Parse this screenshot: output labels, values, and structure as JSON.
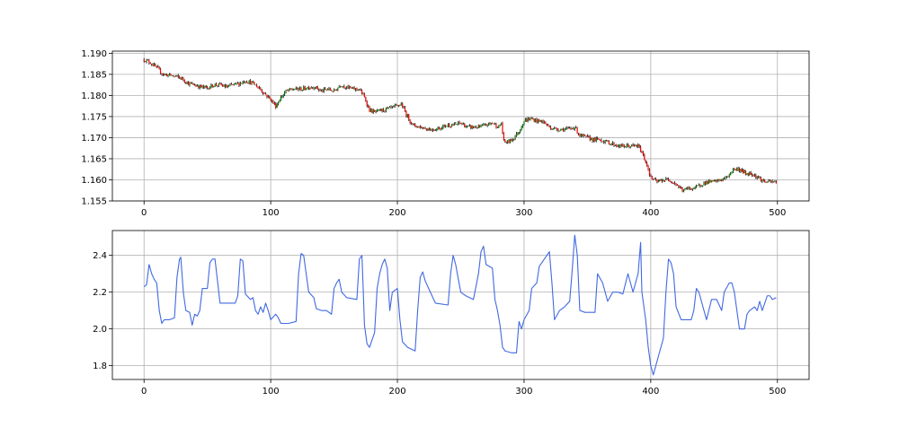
{
  "chart_data": [
    {
      "type": "candlestick",
      "xlim": [
        -25,
        525
      ],
      "ylim": [
        1.155,
        1.1905
      ],
      "x_ticks": [
        0,
        100,
        200,
        300,
        400,
        500
      ],
      "x_tick_labels": [
        "0",
        "100",
        "200",
        "300",
        "400",
        "500"
      ],
      "y_ticks": [
        1.155,
        1.16,
        1.165,
        1.17,
        1.175,
        1.18,
        1.185,
        1.19
      ],
      "y_tick_labels": [
        "1.155",
        "1.160",
        "1.165",
        "1.170",
        "1.175",
        "1.180",
        "1.185",
        "1.190"
      ],
      "grid": true,
      "up_color": "#008000",
      "down_color": "#ff0000",
      "wick_color": "#000000",
      "close_path": [
        [
          0,
          1.1885
        ],
        [
          5,
          1.1878
        ],
        [
          10,
          1.1865
        ],
        [
          15,
          1.185
        ],
        [
          20,
          1.1848
        ],
        [
          25,
          1.1845
        ],
        [
          30,
          1.184
        ],
        [
          35,
          1.1828
        ],
        [
          40,
          1.1825
        ],
        [
          45,
          1.182
        ],
        [
          50,
          1.1818
        ],
        [
          55,
          1.1825
        ],
        [
          60,
          1.1825
        ],
        [
          65,
          1.182
        ],
        [
          70,
          1.1825
        ],
        [
          75,
          1.1828
        ],
        [
          80,
          1.1835
        ],
        [
          85,
          1.183
        ],
        [
          90,
          1.182
        ],
        [
          95,
          1.1805
        ],
        [
          100,
          1.179
        ],
        [
          104,
          1.1775
        ],
        [
          108,
          1.1795
        ],
        [
          112,
          1.181
        ],
        [
          118,
          1.1815
        ],
        [
          125,
          1.1815
        ],
        [
          130,
          1.182
        ],
        [
          135,
          1.182
        ],
        [
          140,
          1.181
        ],
        [
          145,
          1.1815
        ],
        [
          150,
          1.181
        ],
        [
          155,
          1.1825
        ],
        [
          160,
          1.182
        ],
        [
          165,
          1.1815
        ],
        [
          170,
          1.1815
        ],
        [
          174,
          1.1795
        ],
        [
          178,
          1.1765
        ],
        [
          182,
          1.176
        ],
        [
          188,
          1.1765
        ],
        [
          195,
          1.177
        ],
        [
          200,
          1.1775
        ],
        [
          203,
          1.178
        ],
        [
          207,
          1.1755
        ],
        [
          212,
          1.173
        ],
        [
          218,
          1.1725
        ],
        [
          225,
          1.172
        ],
        [
          230,
          1.172
        ],
        [
          235,
          1.1725
        ],
        [
          240,
          1.173
        ],
        [
          245,
          1.173
        ],
        [
          250,
          1.1735
        ],
        [
          255,
          1.1725
        ],
        [
          260,
          1.1725
        ],
        [
          265,
          1.1725
        ],
        [
          270,
          1.173
        ],
        [
          275,
          1.1735
        ],
        [
          280,
          1.1725
        ],
        [
          282,
          1.1735
        ],
        [
          284,
          1.169
        ],
        [
          288,
          1.169
        ],
        [
          292,
          1.17
        ],
        [
          296,
          1.1715
        ],
        [
          300,
          1.174
        ],
        [
          305,
          1.1745
        ],
        [
          310,
          1.174
        ],
        [
          315,
          1.1738
        ],
        [
          320,
          1.1725
        ],
        [
          325,
          1.172
        ],
        [
          330,
          1.172
        ],
        [
          335,
          1.172
        ],
        [
          340,
          1.1725
        ],
        [
          344,
          1.1705
        ],
        [
          350,
          1.17
        ],
        [
          355,
          1.1695
        ],
        [
          360,
          1.1695
        ],
        [
          365,
          1.169
        ],
        [
          370,
          1.1685
        ],
        [
          375,
          1.168
        ],
        [
          380,
          1.168
        ],
        [
          385,
          1.168
        ],
        [
          390,
          1.168
        ],
        [
          393,
          1.1665
        ],
        [
          397,
          1.1635
        ],
        [
          400,
          1.1605
        ],
        [
          405,
          1.1595
        ],
        [
          410,
          1.16
        ],
        [
          415,
          1.16
        ],
        [
          420,
          1.159
        ],
        [
          425,
          1.1575
        ],
        [
          430,
          1.158
        ],
        [
          435,
          1.158
        ],
        [
          440,
          1.159
        ],
        [
          445,
          1.1595
        ],
        [
          450,
          1.1595
        ],
        [
          455,
          1.16
        ],
        [
          460,
          1.1605
        ],
        [
          465,
          1.1625
        ],
        [
          470,
          1.1625
        ],
        [
          475,
          1.1615
        ],
        [
          480,
          1.1615
        ],
        [
          485,
          1.1605
        ],
        [
          490,
          1.1595
        ],
        [
          495,
          1.1595
        ],
        [
          499,
          1.1595
        ]
      ]
    },
    {
      "type": "line",
      "xlim": [
        -25,
        525
      ],
      "ylim": [
        1.725,
        2.535
      ],
      "x_ticks": [
        0,
        100,
        200,
        300,
        400,
        500
      ],
      "x_tick_labels": [
        "0",
        "100",
        "200",
        "300",
        "400",
        "500"
      ],
      "y_ticks": [
        1.8,
        2.0,
        2.2,
        2.4
      ],
      "y_tick_labels": [
        "1.8",
        "2.0",
        "2.2",
        "2.4"
      ],
      "grid": true,
      "line_color": "#4169e1",
      "points": [
        [
          0,
          2.23
        ],
        [
          2,
          2.24
        ],
        [
          4,
          2.35
        ],
        [
          6,
          2.3
        ],
        [
          8,
          2.27
        ],
        [
          10,
          2.25
        ],
        [
          12,
          2.1
        ],
        [
          14,
          2.03
        ],
        [
          16,
          2.05
        ],
        [
          20,
          2.05
        ],
        [
          24,
          2.06
        ],
        [
          26,
          2.28
        ],
        [
          28,
          2.38
        ],
        [
          29,
          2.39
        ],
        [
          31,
          2.2
        ],
        [
          33,
          2.1
        ],
        [
          36,
          2.09
        ],
        [
          38,
          2.02
        ],
        [
          40,
          2.08
        ],
        [
          42,
          2.07
        ],
        [
          44,
          2.1
        ],
        [
          46,
          2.22
        ],
        [
          50,
          2.22
        ],
        [
          52,
          2.36
        ],
        [
          54,
          2.38
        ],
        [
          56,
          2.38
        ],
        [
          58,
          2.26
        ],
        [
          60,
          2.14
        ],
        [
          65,
          2.14
        ],
        [
          72,
          2.14
        ],
        [
          74,
          2.18
        ],
        [
          76,
          2.38
        ],
        [
          78,
          2.37
        ],
        [
          80,
          2.19
        ],
        [
          84,
          2.16
        ],
        [
          86,
          2.17
        ],
        [
          88,
          2.1
        ],
        [
          90,
          2.08
        ],
        [
          92,
          2.12
        ],
        [
          94,
          2.09
        ],
        [
          96,
          2.14
        ],
        [
          98,
          2.1
        ],
        [
          100,
          2.05
        ],
        [
          104,
          2.08
        ],
        [
          106,
          2.06
        ],
        [
          108,
          2.03
        ],
        [
          114,
          2.03
        ],
        [
          120,
          2.04
        ],
        [
          122,
          2.3
        ],
        [
          124,
          2.41
        ],
        [
          126,
          2.4
        ],
        [
          128,
          2.3
        ],
        [
          130,
          2.2
        ],
        [
          134,
          2.17
        ],
        [
          136,
          2.11
        ],
        [
          140,
          2.1
        ],
        [
          144,
          2.1
        ],
        [
          148,
          2.08
        ],
        [
          150,
          2.22
        ],
        [
          152,
          2.25
        ],
        [
          154,
          2.27
        ],
        [
          156,
          2.2
        ],
        [
          160,
          2.17
        ],
        [
          168,
          2.16
        ],
        [
          170,
          2.38
        ],
        [
          172,
          2.4
        ],
        [
          173,
          2.22
        ],
        [
          174,
          2.02
        ],
        [
          176,
          1.92
        ],
        [
          178,
          1.9
        ],
        [
          182,
          1.98
        ],
        [
          184,
          2.22
        ],
        [
          186,
          2.3
        ],
        [
          188,
          2.35
        ],
        [
          190,
          2.38
        ],
        [
          192,
          2.33
        ],
        [
          194,
          2.1
        ],
        [
          196,
          2.2
        ],
        [
          200,
          2.22
        ],
        [
          202,
          2.05
        ],
        [
          204,
          1.93
        ],
        [
          208,
          1.9
        ],
        [
          214,
          1.88
        ],
        [
          216,
          2.1
        ],
        [
          218,
          2.28
        ],
        [
          220,
          2.31
        ],
        [
          222,
          2.26
        ],
        [
          226,
          2.2
        ],
        [
          230,
          2.14
        ],
        [
          240,
          2.13
        ],
        [
          242,
          2.3
        ],
        [
          244,
          2.4
        ],
        [
          246,
          2.35
        ],
        [
          250,
          2.2
        ],
        [
          254,
          2.18
        ],
        [
          260,
          2.16
        ],
        [
          264,
          2.3
        ],
        [
          266,
          2.42
        ],
        [
          268,
          2.45
        ],
        [
          270,
          2.35
        ],
        [
          275,
          2.33
        ],
        [
          277,
          2.16
        ],
        [
          279,
          2.1
        ],
        [
          281,
          2.02
        ],
        [
          283,
          1.9
        ],
        [
          285,
          1.88
        ],
        [
          290,
          1.87
        ],
        [
          294,
          1.87
        ],
        [
          296,
          2.04
        ],
        [
          298,
          2.0
        ],
        [
          300,
          2.05
        ],
        [
          304,
          2.1
        ],
        [
          306,
          2.22
        ],
        [
          310,
          2.25
        ],
        [
          312,
          2.34
        ],
        [
          315,
          2.37
        ],
        [
          320,
          2.42
        ],
        [
          322,
          2.25
        ],
        [
          324,
          2.05
        ],
        [
          328,
          2.1
        ],
        [
          332,
          2.12
        ],
        [
          336,
          2.15
        ],
        [
          338,
          2.32
        ],
        [
          340,
          2.51
        ],
        [
          342,
          2.4
        ],
        [
          344,
          2.1
        ],
        [
          348,
          2.09
        ],
        [
          356,
          2.09
        ],
        [
          358,
          2.3
        ],
        [
          362,
          2.25
        ],
        [
          366,
          2.15
        ],
        [
          370,
          2.2
        ],
        [
          374,
          2.2
        ],
        [
          378,
          2.19
        ],
        [
          382,
          2.3
        ],
        [
          386,
          2.2
        ],
        [
          390,
          2.3
        ],
        [
          392,
          2.47
        ],
        [
          393,
          2.2
        ],
        [
          396,
          2.05
        ],
        [
          398,
          1.9
        ],
        [
          400,
          1.8
        ],
        [
          402,
          1.75
        ],
        [
          404,
          1.8
        ],
        [
          406,
          1.85
        ],
        [
          410,
          1.95
        ],
        [
          412,
          2.2
        ],
        [
          414,
          2.38
        ],
        [
          416,
          2.36
        ],
        [
          418,
          2.3
        ],
        [
          420,
          2.12
        ],
        [
          424,
          2.05
        ],
        [
          432,
          2.05
        ],
        [
          434,
          2.1
        ],
        [
          436,
          2.22
        ],
        [
          438,
          2.2
        ],
        [
          440,
          2.15
        ],
        [
          444,
          2.05
        ],
        [
          448,
          2.16
        ],
        [
          452,
          2.16
        ],
        [
          456,
          2.1
        ],
        [
          458,
          2.2
        ],
        [
          462,
          2.25
        ],
        [
          464,
          2.25
        ],
        [
          466,
          2.2
        ],
        [
          470,
          2.0
        ],
        [
          474,
          2.0
        ],
        [
          476,
          2.08
        ],
        [
          478,
          2.1
        ],
        [
          482,
          2.12
        ],
        [
          484,
          2.1
        ],
        [
          486,
          2.15
        ],
        [
          488,
          2.1
        ],
        [
          492,
          2.18
        ],
        [
          494,
          2.18
        ],
        [
          496,
          2.16
        ],
        [
          499,
          2.17
        ]
      ]
    }
  ]
}
